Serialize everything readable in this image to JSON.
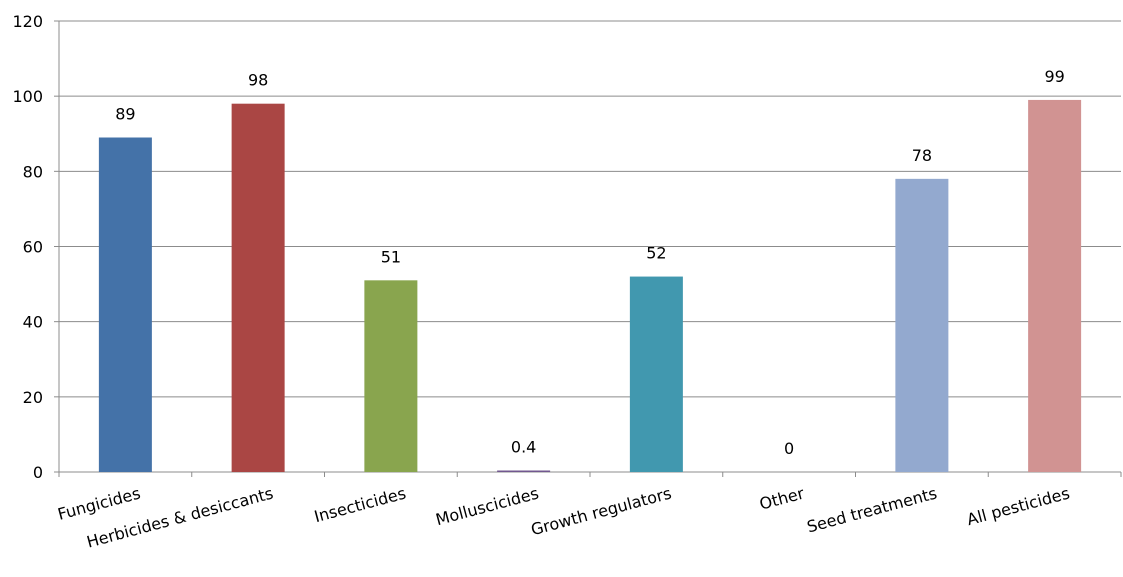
{
  "chart_data": {
    "type": "bar",
    "title": "",
    "xlabel": "",
    "ylabel": "",
    "ylim": [
      0,
      120
    ],
    "yticks": [
      0,
      20,
      40,
      60,
      80,
      100,
      120
    ],
    "grid": true,
    "legend": "none",
    "categories": [
      "Fungicides",
      "Herbicides & desiccants",
      "Insecticides",
      "Molluscicides",
      "Growth regulators",
      "Other",
      "Seed treatments",
      "All pesticides"
    ],
    "values": [
      89,
      98,
      51,
      0.4,
      52,
      0,
      78,
      99
    ],
    "labels": [
      "89",
      "98",
      "51",
      "0.4",
      "52",
      "0",
      "78",
      "99"
    ],
    "colors": [
      "#4472a8",
      "#aa4644",
      "#89a54e",
      "#71588f",
      "#4198af",
      "#db843d",
      "#93a9cf",
      "#d19392"
    ]
  }
}
